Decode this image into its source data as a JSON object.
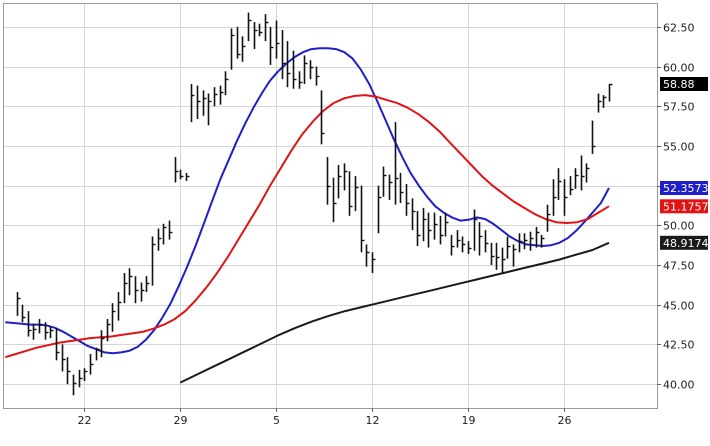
{
  "chart_data": {
    "type": "line",
    "chart_style": "ohlc-bars-with-moving-averages",
    "grid": true,
    "ylim": [
      38.5,
      64.0
    ],
    "y_axis_side": "right",
    "y_ticks": [
      {
        "value": 40.0,
        "label": "40.00"
      },
      {
        "value": 42.5,
        "label": "42.50"
      },
      {
        "value": 45.0,
        "label": "45.00"
      },
      {
        "value": 47.5,
        "label": "47.50"
      },
      {
        "value": 50.0,
        "label": "50.00"
      },
      {
        "value": 52.5,
        "label": "52.50"
      },
      {
        "value": 55.0,
        "label": "55.00"
      },
      {
        "value": 57.5,
        "label": "57.50"
      },
      {
        "value": 60.0,
        "label": "60.00"
      },
      {
        "value": 62.5,
        "label": "62.50"
      }
    ],
    "x_ticks": [
      {
        "index": 12,
        "label": "22"
      },
      {
        "index": 29,
        "label": "29"
      },
      {
        "index": 46,
        "label": "5"
      },
      {
        "index": 63,
        "label": "12"
      },
      {
        "index": 80,
        "label": "19"
      },
      {
        "index": 97,
        "label": "26"
      }
    ],
    "x_range": [
      -2.4,
      113.5
    ],
    "price_bars": [
      [
        45.8,
        44.3,
        45.4
      ],
      [
        45.0,
        43.9,
        44.2
      ],
      [
        44.6,
        43.0,
        43.4
      ],
      [
        43.8,
        42.8,
        43.5
      ],
      [
        44.1,
        43.2,
        43.8
      ],
      [
        43.9,
        42.8,
        43.3
      ],
      [
        43.6,
        42.9,
        43.4
      ],
      [
        43.5,
        41.5,
        42.0
      ],
      [
        42.5,
        40.8,
        41.6
      ],
      [
        41.7,
        40.0,
        40.8
      ],
      [
        40.6,
        39.3,
        40.1
      ],
      [
        40.9,
        39.8,
        40.4
      ],
      [
        41.0,
        40.2,
        40.8
      ],
      [
        41.9,
        40.6,
        41.3
      ],
      [
        42.3,
        41.5,
        42.2
      ],
      [
        43.4,
        41.7,
        42.9
      ],
      [
        44.1,
        42.7,
        43.8
      ],
      [
        45.1,
        43.3,
        44.6
      ],
      [
        45.8,
        44.0,
        45.2
      ],
      [
        47.0,
        45.1,
        46.4
      ],
      [
        47.3,
        45.6,
        46.8
      ],
      [
        46.8,
        45.1,
        45.9
      ],
      [
        46.4,
        45.2,
        45.9
      ],
      [
        46.8,
        45.8,
        46.4
      ],
      [
        49.3,
        46.2,
        48.8
      ],
      [
        49.8,
        48.4,
        49.2
      ],
      [
        50.1,
        48.8,
        49.9
      ],
      [
        50.3,
        49.1,
        49.6
      ],
      [
        54.3,
        52.7,
        53.4
      ],
      [
        53.5,
        52.9,
        53.1
      ],
      [
        53.3,
        52.8,
        53.1
      ],
      [
        58.9,
        56.5,
        58.2
      ],
      [
        58.8,
        56.7,
        57.8
      ],
      [
        58.5,
        56.9,
        58.0
      ],
      [
        58.3,
        56.3,
        57.8
      ],
      [
        58.7,
        57.5,
        58.3
      ],
      [
        58.8,
        57.6,
        58.4
      ],
      [
        59.7,
        58.2,
        59.2
      ],
      [
        62.4,
        59.8,
        62.0
      ],
      [
        62.5,
        60.5,
        60.8
      ],
      [
        61.9,
        60.3,
        61.3
      ],
      [
        63.4,
        61.6,
        62.9
      ],
      [
        62.8,
        61.1,
        62.3
      ],
      [
        62.7,
        61.9,
        62.2
      ],
      [
        63.3,
        61.6,
        62.8
      ],
      [
        62.5,
        60.1,
        61.2
      ],
      [
        62.9,
        60.5,
        61.5
      ],
      [
        62.3,
        59.2,
        60.2
      ],
      [
        61.6,
        58.7,
        59.6
      ],
      [
        61.0,
        58.6,
        59.2
      ],
      [
        59.7,
        58.6,
        59.0
      ],
      [
        60.7,
        58.9,
        60.2
      ],
      [
        60.4,
        59.2,
        60.0
      ],
      [
        60.0,
        58.8,
        59.4
      ],
      [
        58.5,
        55.1,
        55.8
      ],
      [
        54.3,
        51.3,
        52.5
      ],
      [
        53.0,
        50.2,
        51.4
      ],
      [
        53.8,
        51.7,
        53.1
      ],
      [
        53.9,
        52.2,
        53.4
      ],
      [
        53.4,
        50.6,
        51.2
      ],
      [
        53.1,
        50.9,
        52.4
      ],
      [
        52.5,
        48.3,
        49.1
      ],
      [
        48.8,
        47.4,
        48.3
      ],
      [
        48.3,
        47.0,
        47.9
      ],
      [
        52.5,
        49.5,
        51.8
      ],
      [
        53.7,
        51.8,
        53.2
      ],
      [
        53.2,
        51.6,
        52.7
      ],
      [
        56.5,
        51.3,
        53.0
      ],
      [
        53.3,
        51.4,
        52.1
      ],
      [
        52.6,
        50.6,
        51.4
      ],
      [
        51.7,
        49.7,
        50.9
      ],
      [
        50.9,
        48.7,
        49.4
      ],
      [
        51.1,
        49.0,
        50.4
      ],
      [
        50.8,
        48.6,
        49.7
      ],
      [
        50.8,
        49.1,
        50.1
      ],
      [
        50.6,
        48.8,
        49.4
      ],
      [
        50.8,
        49.3,
        50.2
      ],
      [
        49.4,
        48.1,
        48.7
      ],
      [
        49.7,
        48.6,
        49.1
      ],
      [
        49.3,
        48.3,
        48.8
      ],
      [
        49.0,
        48.2,
        48.6
      ],
      [
        51.0,
        48.4,
        50.4
      ],
      [
        50.2,
        48.1,
        49.3
      ],
      [
        49.7,
        48.3,
        48.9
      ],
      [
        48.9,
        47.5,
        48.1
      ],
      [
        48.9,
        47.2,
        48.0
      ],
      [
        48.6,
        47.0,
        47.9
      ],
      [
        49.3,
        47.9,
        48.7
      ],
      [
        48.8,
        47.4,
        48.5
      ],
      [
        49.5,
        48.3,
        49.0
      ],
      [
        49.5,
        48.5,
        49.1
      ],
      [
        49.6,
        48.4,
        49.2
      ],
      [
        49.9,
        48.6,
        49.6
      ],
      [
        49.4,
        48.6,
        49.2
      ],
      [
        51.3,
        49.6,
        50.7
      ],
      [
        52.9,
        50.6,
        51.8
      ],
      [
        53.6,
        51.6,
        52.8
      ],
      [
        52.9,
        50.6,
        51.8
      ],
      [
        53.1,
        51.9,
        52.3
      ],
      [
        53.6,
        52.3,
        53.2
      ],
      [
        54.4,
        52.2,
        53.1
      ],
      [
        53.9,
        52.7,
        53.6
      ],
      [
        56.6,
        54.5,
        55.0
      ],
      [
        58.3,
        57.1,
        57.8
      ],
      [
        58.2,
        57.4,
        58.1
      ],
      [
        58.9,
        57.8,
        58.9
      ]
    ],
    "series": [
      {
        "color": "#1f1fc8",
        "last_label": "52.3573",
        "x_start": -2,
        "values": [
          43.9,
          43.85,
          43.8,
          43.75,
          43.75,
          43.7,
          43.55,
          43.3,
          43.0,
          42.7,
          42.4,
          42.2,
          42.0,
          41.95,
          42.0,
          42.1,
          42.35,
          42.8,
          43.4,
          44.2,
          45.1,
          46.2,
          47.4,
          48.7,
          50.1,
          51.5,
          52.9,
          54.1,
          55.3,
          56.4,
          57.4,
          58.3,
          59.1,
          59.7,
          60.2,
          60.6,
          60.9,
          61.1,
          61.15,
          61.15,
          61.1,
          60.9,
          60.5,
          59.8,
          58.9,
          57.8,
          56.6,
          55.4,
          54.3,
          53.3,
          52.5,
          51.8,
          51.2,
          50.8,
          50.5,
          50.3,
          50.35,
          50.5,
          50.4,
          50.1,
          49.7,
          49.3,
          49.0,
          48.8,
          48.75,
          48.7,
          48.75,
          48.9,
          49.2,
          49.65,
          50.2,
          50.8,
          51.4,
          52.35
        ],
        "x_offset_start": 40
      },
      {
        "color": "#e01414",
        "last_label": "51.1757",
        "values": [
          41.7,
          41.9,
          42.1,
          42.3,
          42.45,
          42.6,
          42.7,
          42.8,
          42.9,
          42.95,
          43.0,
          43.1,
          43.2,
          43.3,
          43.5,
          43.75,
          44.1,
          44.6,
          45.3,
          46.1,
          47.0,
          48.0,
          49.1,
          50.2,
          51.3,
          52.5,
          53.6,
          54.7,
          55.7,
          56.5,
          57.2,
          57.7,
          58.0,
          58.15,
          58.2,
          58.1,
          57.9,
          57.7,
          57.4,
          57.0,
          56.5,
          55.9,
          55.2,
          54.5,
          53.8,
          53.1,
          52.5,
          52.0,
          51.5,
          51.1,
          50.7,
          50.4,
          50.2,
          50.15,
          50.2,
          50.4,
          50.8,
          51.2
        ]
      },
      {
        "color": "#1a1a1a",
        "last_label": "48.9174",
        "values": [
          40.1,
          40.6,
          41.1,
          41.6,
          42.1,
          42.6,
          43.1,
          43.55,
          43.95,
          44.3,
          44.6,
          44.85,
          45.1,
          45.35,
          45.6,
          45.85,
          46.1,
          46.35,
          46.6,
          46.85,
          47.1,
          47.35,
          47.6,
          47.85,
          48.15,
          48.45,
          48.9
        ]
      }
    ],
    "last_price_label": "58.88"
  },
  "colors": {
    "background": "#ffffff",
    "grid": "#d6d6d6",
    "frame": "#9a9a9a",
    "bars": "#111111",
    "last_price_tag": "#000000",
    "ma_fast": "#1f1fc8",
    "ma_mid": "#e01414",
    "ma_slow": "#1a1a1a"
  }
}
